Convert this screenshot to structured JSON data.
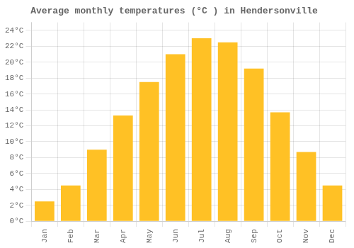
{
  "chart_data": {
    "type": "bar",
    "title": "Average monthly temperatures (°C ) in Hendersonville",
    "categories": [
      "Jan",
      "Feb",
      "Mar",
      "Apr",
      "May",
      "Jun",
      "Jul",
      "Aug",
      "Sep",
      "Oct",
      "Nov",
      "Dec"
    ],
    "values": [
      2.5,
      4.5,
      9.0,
      13.3,
      17.5,
      21.0,
      23.0,
      22.5,
      19.2,
      13.7,
      8.7,
      4.5
    ],
    "color": "#FFC125",
    "ylim": [
      0,
      25
    ],
    "yticks": [
      {
        "value": 0,
        "label": "0°C"
      },
      {
        "value": 2,
        "label": "2°C"
      },
      {
        "value": 4,
        "label": "4°C"
      },
      {
        "value": 6,
        "label": "6°C"
      },
      {
        "value": 8,
        "label": "8°C"
      },
      {
        "value": 10,
        "label": "10°C"
      },
      {
        "value": 12,
        "label": "12°C"
      },
      {
        "value": 14,
        "label": "14°C"
      },
      {
        "value": 16,
        "label": "16°C"
      },
      {
        "value": 18,
        "label": "18°C"
      },
      {
        "value": 20,
        "label": "20°C"
      },
      {
        "value": 22,
        "label": "22°C"
      },
      {
        "value": 24,
        "label": "24°C"
      }
    ],
    "grid": true
  }
}
